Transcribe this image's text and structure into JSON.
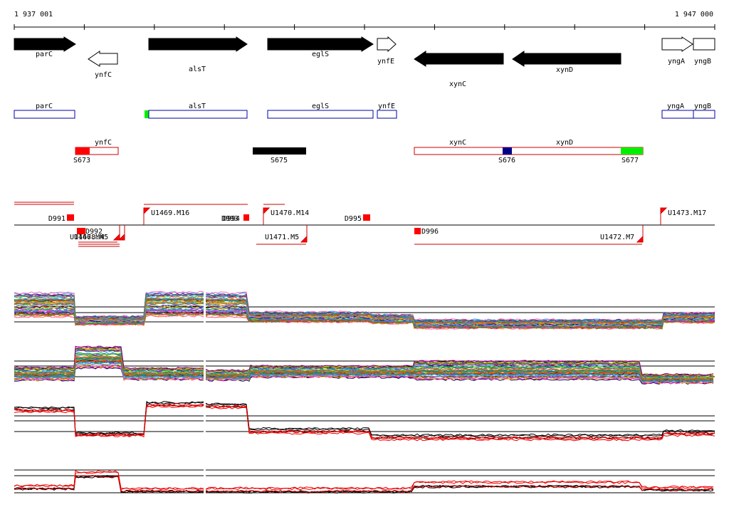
{
  "coords": {
    "start_label": "1 937 001",
    "end_label": "1 947 000"
  },
  "genes": [
    {
      "label": "parC",
      "strand": "+",
      "filled": true
    },
    {
      "label": "ynfC",
      "strand": "-",
      "filled": false
    },
    {
      "label": "alsT",
      "strand": "+",
      "filled": true
    },
    {
      "label": "eglS",
      "strand": "+",
      "filled": true
    },
    {
      "label": "ynfE",
      "strand": "+",
      "filled": false
    },
    {
      "label": "xynC",
      "strand": "-",
      "filled": true
    },
    {
      "label": "xynD",
      "strand": "-",
      "filled": true
    },
    {
      "label": "yngA",
      "strand": "+",
      "filled": false
    },
    {
      "label": "yngB",
      "strand": "+",
      "filled": false
    }
  ],
  "cds_labels": [
    "parC",
    "alsT",
    "eglS",
    "ynfE",
    "yngA",
    "yngB"
  ],
  "operon_labels": [
    "ynfC",
    "xynC",
    "xynD"
  ],
  "segment_labels": [
    "S673",
    "S675",
    "S676",
    "S677"
  ],
  "feature_labels": [
    "D991",
    "U1469.M16",
    "D993",
    "D994",
    "U1470.M14",
    "D995",
    "U1473.M17",
    "D992",
    "U1467.M4",
    "U1468.M5",
    "U1471.M5",
    "D996",
    "U1472.M7"
  ],
  "colors": {
    "gene_fill": "#000000",
    "cds_outline": "#0000aa",
    "operon_outline": "#cc0000",
    "marker_red": "#ff0000",
    "marker_green": "#00ee00",
    "marker_blue": "#000088",
    "grid": "#000000"
  }
}
